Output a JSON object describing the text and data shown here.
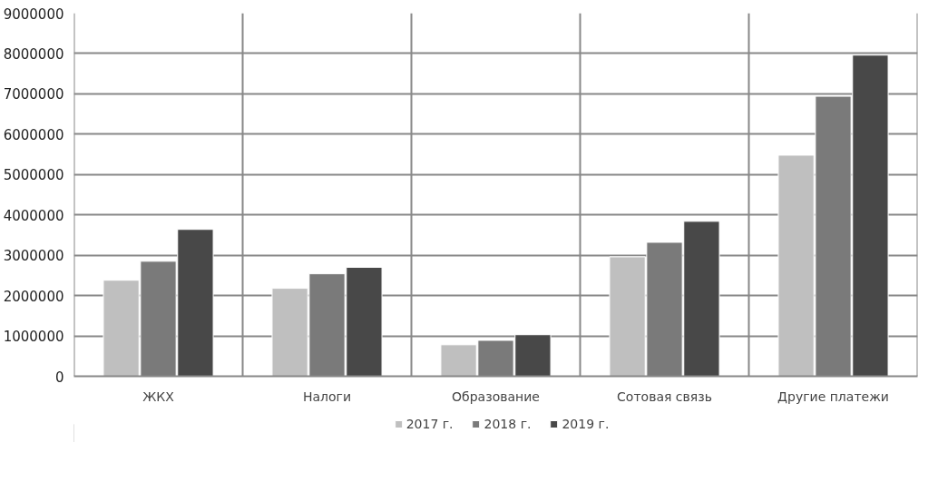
{
  "chart_data": {
    "type": "bar",
    "categories": [
      "ЖКХ",
      "Налоги",
      "Образование",
      "Сотовая связь",
      "Другие платежи"
    ],
    "series": [
      {
        "name": "2017 г.",
        "color": "#bfbfbf",
        "values": [
          2380000,
          2180000,
          780000,
          2960000,
          5480000
        ]
      },
      {
        "name": "2018 г.",
        "color": "#7a7a7a",
        "values": [
          2850000,
          2540000,
          890000,
          3320000,
          6940000
        ]
      },
      {
        "name": "2019 г.",
        "color": "#484848",
        "values": [
          3640000,
          2700000,
          1030000,
          3840000,
          7960000
        ]
      }
    ],
    "ylim": [
      0,
      9000000
    ],
    "yticks": [
      0,
      1000000,
      2000000,
      3000000,
      4000000,
      5000000,
      6000000,
      7000000,
      8000000,
      9000000
    ],
    "grid": true,
    "legend": "bottom"
  }
}
